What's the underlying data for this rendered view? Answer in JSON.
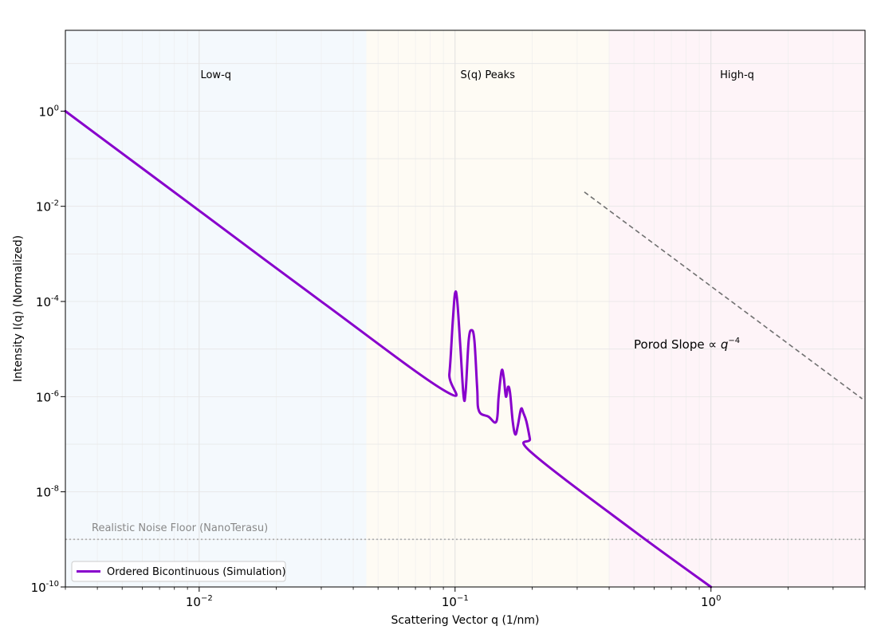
{
  "chart_data": {
    "type": "line",
    "xlabel": "Scattering Vector q (1/nm)",
    "ylabel": "Intensity I(q) (Normalized)",
    "xscale": "log",
    "yscale": "log",
    "xlim": [
      0.003,
      4.0
    ],
    "ylim": [
      1e-10,
      50
    ],
    "grid": true,
    "x_ticks": [
      {
        "value": 0.01,
        "base": "10",
        "exp": "−2"
      },
      {
        "value": 0.1,
        "base": "10",
        "exp": "−1"
      },
      {
        "value": 1,
        "base": "10",
        "exp": "0"
      }
    ],
    "y_ticks": [
      {
        "value": 1,
        "base": "10",
        "exp": "0"
      },
      {
        "value": 0.01,
        "base": "10",
        "exp": "-2"
      },
      {
        "value": 0.0001,
        "base": "10",
        "exp": "-4"
      },
      {
        "value": 1e-06,
        "base": "10",
        "exp": "-6"
      },
      {
        "value": 1e-08,
        "base": "10",
        "exp": "-8"
      },
      {
        "value": 1e-10,
        "base": "10",
        "exp": "-10"
      }
    ],
    "regions": [
      {
        "label": "Low-q",
        "x_range": [
          0.003,
          0.045
        ],
        "color": "#e6f2fa"
      },
      {
        "label": "S(q) Peaks",
        "x_range": [
          0.045,
          0.4
        ],
        "color": "#fcf6e6"
      },
      {
        "label": "High-q",
        "x_range": [
          0.4,
          4.0
        ],
        "color": "#fde6ef"
      }
    ],
    "series": [
      {
        "name": "Ordered Bicontinuous (Simulation)",
        "color": "#8800cc",
        "points": [
          [
            0.003,
            1.0
          ],
          [
            0.01,
            0.0081
          ],
          [
            0.03,
            0.0001
          ],
          [
            0.0917,
            1.3e-06
          ],
          [
            0.095,
            3e-06
          ],
          [
            0.098,
            4e-05
          ],
          [
            0.1,
            0.00015
          ],
          [
            0.102,
            0.0001
          ],
          [
            0.105,
            1e-05
          ],
          [
            0.108,
            1e-06
          ],
          [
            0.11,
            1.3e-06
          ],
          [
            0.113,
            1.5e-05
          ],
          [
            0.116,
            2.5e-05
          ],
          [
            0.119,
            1.5e-05
          ],
          [
            0.122,
            1.5e-06
          ],
          [
            0.124,
            5e-07
          ],
          [
            0.135,
            3.8e-07
          ],
          [
            0.145,
            3e-07
          ],
          [
            0.148,
            1e-06
          ],
          [
            0.152,
            3.5e-06
          ],
          [
            0.155,
            2.5e-06
          ],
          [
            0.158,
            1e-06
          ],
          [
            0.161,
            1.6e-06
          ],
          [
            0.164,
            1.2e-06
          ],
          [
            0.168,
            3e-07
          ],
          [
            0.172,
            1.6e-07
          ],
          [
            0.176,
            2.5e-07
          ],
          [
            0.181,
            5.5e-07
          ],
          [
            0.185,
            4.5e-07
          ],
          [
            0.19,
            3e-07
          ],
          [
            0.196,
            1.3e-07
          ],
          [
            0.2,
            6.5e-08
          ],
          [
            0.5,
            1.5e-09
          ],
          [
            1.0,
            1e-10
          ]
        ]
      }
    ],
    "reference_lines": [
      {
        "kind": "porod",
        "points": [
          [
            0.32,
            0.02
          ],
          [
            3.9,
            9e-07
          ]
        ],
        "color": "#707070",
        "style": "dashed"
      },
      {
        "kind": "noise-floor",
        "y": 1e-09,
        "color": "#aaaaaa",
        "style": "dotted"
      }
    ],
    "annotations": {
      "porod_prefix": "Porod Slope ∝ ",
      "porod_var": "q",
      "porod_exp": "−4",
      "noise_floor": "Realistic Noise Floor (NanoTerasu)"
    },
    "legend": {
      "placement": "lower-left",
      "label": "Ordered Bicontinuous (Simulation)"
    }
  }
}
